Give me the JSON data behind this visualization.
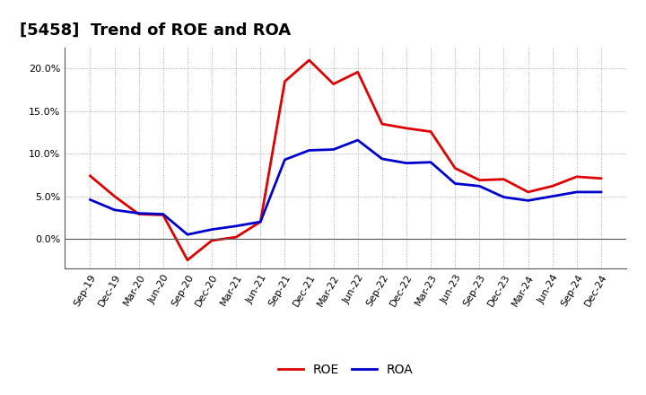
{
  "title": "[5458]  Trend of ROE and ROA",
  "labels": [
    "Sep-19",
    "Dec-19",
    "Mar-20",
    "Jun-20",
    "Sep-20",
    "Dec-20",
    "Mar-21",
    "Jun-21",
    "Sep-21",
    "Dec-21",
    "Mar-22",
    "Jun-22",
    "Sep-22",
    "Dec-22",
    "Mar-23",
    "Jun-23",
    "Sep-23",
    "Dec-23",
    "Mar-24",
    "Jun-24",
    "Sep-24",
    "Dec-24"
  ],
  "ROE": [
    7.4,
    5.0,
    2.9,
    2.8,
    -2.5,
    -0.2,
    0.2,
    2.0,
    18.5,
    21.0,
    18.2,
    19.6,
    13.5,
    13.0,
    12.6,
    8.3,
    6.9,
    7.0,
    5.5,
    6.2,
    7.3,
    7.1
  ],
  "ROA": [
    4.6,
    3.4,
    3.0,
    2.9,
    0.5,
    1.1,
    1.5,
    2.0,
    9.3,
    10.4,
    10.5,
    11.6,
    9.4,
    8.9,
    9.0,
    6.5,
    6.2,
    4.9,
    4.5,
    5.0,
    5.5,
    5.5
  ],
  "roe_color": "#dd0000",
  "roa_color": "#0000cc",
  "line_width": 2.0,
  "ylim": [
    -3.5,
    22.5
  ],
  "yticks": [
    0.0,
    5.0,
    10.0,
    15.0,
    20.0
  ],
  "bg_color": "#ffffff",
  "plot_bg_color": "#ffffff",
  "grid_color": "#999999",
  "title_fontsize": 13,
  "tick_fontsize": 8,
  "legend_fontsize": 10
}
